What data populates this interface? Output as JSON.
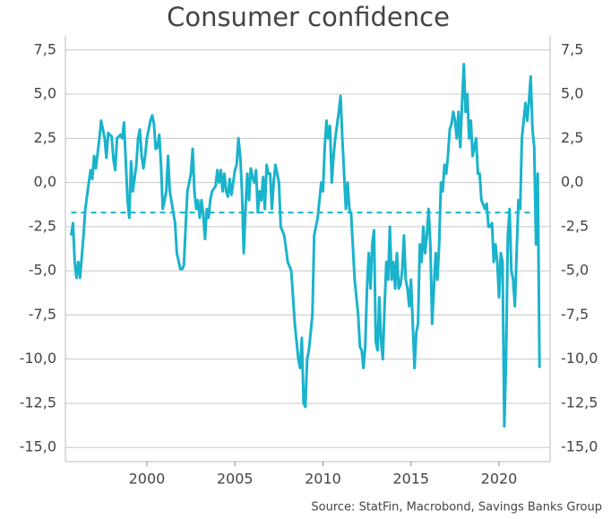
{
  "chart_data": {
    "type": "line",
    "title": "Consumer confidence",
    "source": "Source: StatFin, Macrobond, Savings Banks Group",
    "x": [
      1995.7,
      1995.8,
      1995.9,
      1996.0,
      1996.1,
      1996.2,
      1996.4,
      1996.5,
      1996.7,
      1996.8,
      1996.9,
      1997.0,
      1997.1,
      1997.3,
      1997.4,
      1997.6,
      1997.7,
      1997.8,
      1998.0,
      1998.1,
      1998.2,
      1998.3,
      1998.5,
      1998.6,
      1998.7,
      1998.9,
      1999.0,
      1999.1,
      1999.2,
      1999.4,
      1999.5,
      1999.6,
      1999.7,
      1999.8,
      1999.9,
      2000.0,
      2000.2,
      2000.3,
      2000.4,
      2000.5,
      2000.6,
      2000.7,
      2000.8,
      2000.9,
      2001.1,
      2001.2,
      2001.3,
      2001.5,
      2001.6,
      2001.7,
      2001.9,
      2002.0,
      2002.1,
      2002.2,
      2002.3,
      2002.5,
      2002.6,
      2002.7,
      2002.8,
      2002.9,
      2003.0,
      2003.1,
      2003.2,
      2003.3,
      2003.4,
      2003.5,
      2003.6,
      2003.7,
      2003.9,
      2004.0,
      2004.1,
      2004.2,
      2004.3,
      2004.4,
      2004.5,
      2004.6,
      2004.7,
      2004.8,
      2004.9,
      2005.0,
      2005.1,
      2005.2,
      2005.3,
      2005.4,
      2005.5,
      2005.6,
      2005.7,
      2005.8,
      2005.9,
      2006.0,
      2006.1,
      2006.2,
      2006.3,
      2006.4,
      2006.5,
      2006.6,
      2006.7,
      2006.8,
      2006.9,
      2007.0,
      2007.1,
      2007.2,
      2007.3,
      2007.5,
      2007.6,
      2007.8,
      2008.0,
      2008.2,
      2008.4,
      2008.6,
      2008.7,
      2008.8,
      2008.9,
      2009.0,
      2009.1,
      2009.2,
      2009.4,
      2009.5,
      2009.7,
      2009.8,
      2009.9,
      2010.0,
      2010.1,
      2010.2,
      2010.3,
      2010.4,
      2010.5,
      2010.6,
      2010.7,
      2010.9,
      2011.0,
      2011.1,
      2011.2,
      2011.3,
      2011.4,
      2011.5,
      2011.6,
      2011.8,
      2012.0,
      2012.1,
      2012.2,
      2012.3,
      2012.4,
      2012.5,
      2012.6,
      2012.7,
      2012.8,
      2012.9,
      2013.0,
      2013.1,
      2013.2,
      2013.3,
      2013.4,
      2013.5,
      2013.6,
      2013.7,
      2013.8,
      2013.9,
      2014.0,
      2014.1,
      2014.2,
      2014.3,
      2014.4,
      2014.5,
      2014.6,
      2014.7,
      2014.8,
      2014.9,
      2015.0,
      2015.1,
      2015.2,
      2015.3,
      2015.4,
      2015.5,
      2015.6,
      2015.7,
      2015.8,
      2015.9,
      2016.0,
      2016.1,
      2016.2,
      2016.3,
      2016.4,
      2016.5,
      2016.6,
      2016.7,
      2016.8,
      2016.9,
      2017.0,
      2017.1,
      2017.2,
      2017.3,
      2017.4,
      2017.5,
      2017.6,
      2017.7,
      2017.8,
      2017.9,
      2018.0,
      2018.1,
      2018.2,
      2018.3,
      2018.4,
      2018.5,
      2018.7,
      2018.8,
      2018.9,
      2019.0,
      2019.2,
      2019.3,
      2019.4,
      2019.5,
      2019.6,
      2019.7,
      2019.8,
      2019.9,
      2020.0,
      2020.1,
      2020.2,
      2020.3,
      2020.4,
      2020.5,
      2020.6,
      2020.7,
      2020.8,
      2020.9,
      2021.0,
      2021.1,
      2021.2,
      2021.3,
      2021.4,
      2021.5,
      2021.6,
      2021.7,
      2021.8,
      2021.9,
      2022.0,
      2022.1,
      2022.2,
      2022.3
    ],
    "series": [
      {
        "color": "#1ab3cc",
        "values": [
          -3.0,
          -2.3,
          -4.5,
          -5.4,
          -4.5,
          -5.4,
          -3.0,
          -1.5,
          0.0,
          0.7,
          0.2,
          1.5,
          0.8,
          2.5,
          3.5,
          2.5,
          1.4,
          2.8,
          2.6,
          1.3,
          0.7,
          2.5,
          2.7,
          2.5,
          3.4,
          -1.0,
          -2.0,
          1.2,
          -0.5,
          1.0,
          2.5,
          3.0,
          1.5,
          0.8,
          1.5,
          2.5,
          3.5,
          3.8,
          3.3,
          1.9,
          2.0,
          2.7,
          1.0,
          -1.5,
          -0.5,
          1.5,
          -0.5,
          -1.7,
          -2.3,
          -4.0,
          -4.9,
          -4.9,
          -4.7,
          -2.5,
          -0.5,
          0.5,
          1.9,
          -0.5,
          -1.5,
          -1.0,
          -2.0,
          -1.0,
          -1.8,
          -3.2,
          -1.5,
          -2.0,
          -1.0,
          -0.5,
          -0.2,
          0.7,
          0.0,
          0.7,
          -0.5,
          0.5,
          -0.5,
          -0.8,
          0.2,
          -0.7,
          0.0,
          0.7,
          1.0,
          2.5,
          1.5,
          -0.5,
          -4.0,
          -1.5,
          0.5,
          -1.0,
          0.8,
          0.3,
          0.0,
          0.7,
          -1.7,
          -0.5,
          -1.0,
          0.3,
          -1.5,
          1.0,
          0.5,
          0.5,
          -1.5,
          0.0,
          1.0,
          0.0,
          -2.5,
          -3.0,
          -4.5,
          -5.0,
          -8.0,
          -10.0,
          -10.5,
          -8.8,
          -12.5,
          -12.7,
          -10.0,
          -9.5,
          -7.5,
          -3.0,
          -2.0,
          -1.0,
          0.0,
          -0.5,
          2.0,
          3.5,
          2.5,
          3.2,
          0.0,
          1.5,
          2.5,
          4.0,
          4.9,
          2.5,
          0.5,
          -1.5,
          0.0,
          -1.5,
          -1.8,
          -5.5,
          -7.5,
          -9.3,
          -9.5,
          -10.5,
          -9.3,
          -6.0,
          -4.0,
          -6.0,
          -3.5,
          -2.7,
          -9.0,
          -9.5,
          -6.5,
          -9.0,
          -10.0,
          -7.0,
          -4.5,
          -5.5,
          -2.5,
          -5.5,
          -4.5,
          -6.0,
          -4.0,
          -6.0,
          -5.8,
          -5.0,
          -3.0,
          -5.5,
          -6.0,
          -7.0,
          -5.5,
          -8.0,
          -10.5,
          -8.5,
          -8.0,
          -3.5,
          -4.5,
          -2.5,
          -4.0,
          -3.0,
          -1.5,
          -3.5,
          -8.0,
          -6.0,
          -4.0,
          -5.5,
          -3.5,
          0.0,
          -0.5,
          1.0,
          0.5,
          1.5,
          3.0,
          3.3,
          4.0,
          3.5,
          2.5,
          4.0,
          2.0,
          4.5,
          6.7,
          4.0,
          5.0,
          2.5,
          3.5,
          1.5,
          2.5,
          0.5,
          0.5,
          -1.0,
          -1.5,
          -1.2,
          -2.5,
          -2.5,
          -2.3,
          -4.5,
          -3.5,
          -4.5,
          -6.5,
          -4.0,
          -4.5,
          -13.8,
          -10.0,
          -3.0,
          -1.5,
          -5.0,
          -5.5,
          -7.0,
          -4.0,
          -1.0,
          -1.5,
          2.5,
          3.5,
          4.5,
          3.5,
          4.6,
          6.0,
          3.0,
          2.0,
          -3.5,
          0.5,
          -10.5
        ]
      }
    ],
    "mean_line": {
      "value": -1.7,
      "color": "#1ab3cc"
    },
    "xlim": [
      1995.37,
      2022.9
    ],
    "xticks": [
      2000,
      2005,
      2010,
      2015,
      2020
    ],
    "ylim": [
      -15.8,
      8.3
    ],
    "yticks": [
      {
        "value": 7.5,
        "label": "7,5"
      },
      {
        "value": 5,
        "label": "5,0"
      },
      {
        "value": 2.5,
        "label": "2,5"
      },
      {
        "value": 0,
        "label": "0,0"
      },
      {
        "value": -2.5,
        "label": "-2,5"
      },
      {
        "value": -5,
        "label": "-5,0"
      },
      {
        "value": -7.5,
        "label": "-7,5"
      },
      {
        "value": -10,
        "label": "-10,0"
      },
      {
        "value": -12.5,
        "label": "-12,5"
      },
      {
        "value": -15,
        "label": "-15,0"
      }
    ],
    "y2lim": [
      -15.8,
      8.3
    ],
    "y2ticks": [
      {
        "value": 7.5,
        "label": "7,5"
      },
      {
        "value": 5,
        "label": "5,0"
      },
      {
        "value": 2.5,
        "label": "2,5"
      },
      {
        "value": 0,
        "label": "0,0"
      },
      {
        "value": -2.5,
        "label": "-2,5"
      },
      {
        "value": -5,
        "label": "-5,0"
      },
      {
        "value": -7.5,
        "label": "-7,5"
      },
      {
        "value": -10,
        "label": "-10,0"
      },
      {
        "value": -12.5,
        "label": "-12,5"
      },
      {
        "value": -15,
        "label": "-15,0"
      }
    ],
    "grid": true
  }
}
